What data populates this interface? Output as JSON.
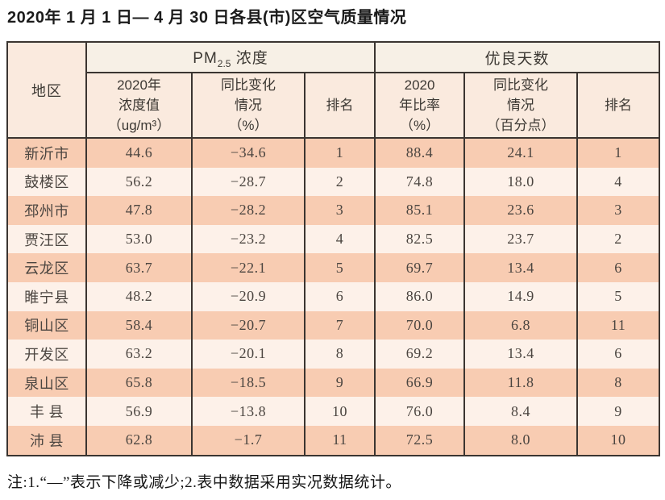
{
  "title": "2020年 1 月 1 日— 4 月 30 日各县(市)区空气质量情况",
  "footnote": "注:1.“—”表示下降或减少;2.表中数据采用实况数据统计。",
  "header": {
    "region": "地区",
    "pm_group": {
      "prefix": "PM",
      "sub": "2.5",
      "suffix": " 浓度"
    },
    "good_group": "优良天数",
    "pm_value": "2020年\n浓度值\n（ug/m³）",
    "pm_change": "同比变化\n情况\n（%）",
    "pm_rank": "排名",
    "good_ratio": "2020\n年比率\n（%）",
    "good_change": "同比变化\n情况\n（百分点）",
    "good_rank": "排名"
  },
  "colors": {
    "odd_row_bg": "#f8ccb2",
    "even_row_bg": "#fdf1e9",
    "header_group_bg": "#f7f0e6",
    "header_sub_bg": "#faeade",
    "border": "#3b3531",
    "data_text": "#4b4540",
    "header_text": "#3c3833"
  },
  "chart_data": {
    "type": "table",
    "title": "2020年1月1日—4月30日各县(市)区空气质量情况",
    "column_groups": [
      {
        "label": "地区",
        "span": 1
      },
      {
        "label": "PM2.5浓度",
        "span": 3
      },
      {
        "label": "优良天数",
        "span": 3
      }
    ],
    "columns": [
      "地区",
      "2020年浓度值（ug/m³）",
      "同比变化情况（%）",
      "排名",
      "2020年比率（%）",
      "同比变化情况（百分点）",
      "排名"
    ],
    "rows": [
      [
        "新沂市",
        "44.6",
        "−34.6",
        "1",
        "88.4",
        "24.1",
        "1"
      ],
      [
        "鼓楼区",
        "56.2",
        "−28.7",
        "2",
        "74.8",
        "18.0",
        "4"
      ],
      [
        "邳州市",
        "47.8",
        "−28.2",
        "3",
        "85.1",
        "23.6",
        "3"
      ],
      [
        "贾汪区",
        "53.0",
        "−23.2",
        "4",
        "82.5",
        "23.7",
        "2"
      ],
      [
        "云龙区",
        "63.7",
        "−22.1",
        "5",
        "69.7",
        "13.4",
        "6"
      ],
      [
        "睢宁县",
        "48.2",
        "−20.9",
        "6",
        "86.0",
        "14.9",
        "5"
      ],
      [
        "铜山区",
        "58.4",
        "−20.7",
        "7",
        "70.0",
        "6.8",
        "11"
      ],
      [
        "开发区",
        "63.2",
        "−20.1",
        "8",
        "69.2",
        "13.4",
        "6"
      ],
      [
        "泉山区",
        "65.8",
        "−18.5",
        "9",
        "66.9",
        "11.8",
        "8"
      ],
      [
        "丰 县",
        "56.9",
        "−13.8",
        "10",
        "76.0",
        "8.4",
        "9"
      ],
      [
        "沛 县",
        "62.8",
        "−1.7",
        "11",
        "72.5",
        "8.0",
        "10"
      ]
    ],
    "notes": "注:1.“—”表示下降或减少;2.表中数据采用实况数据统计。"
  }
}
